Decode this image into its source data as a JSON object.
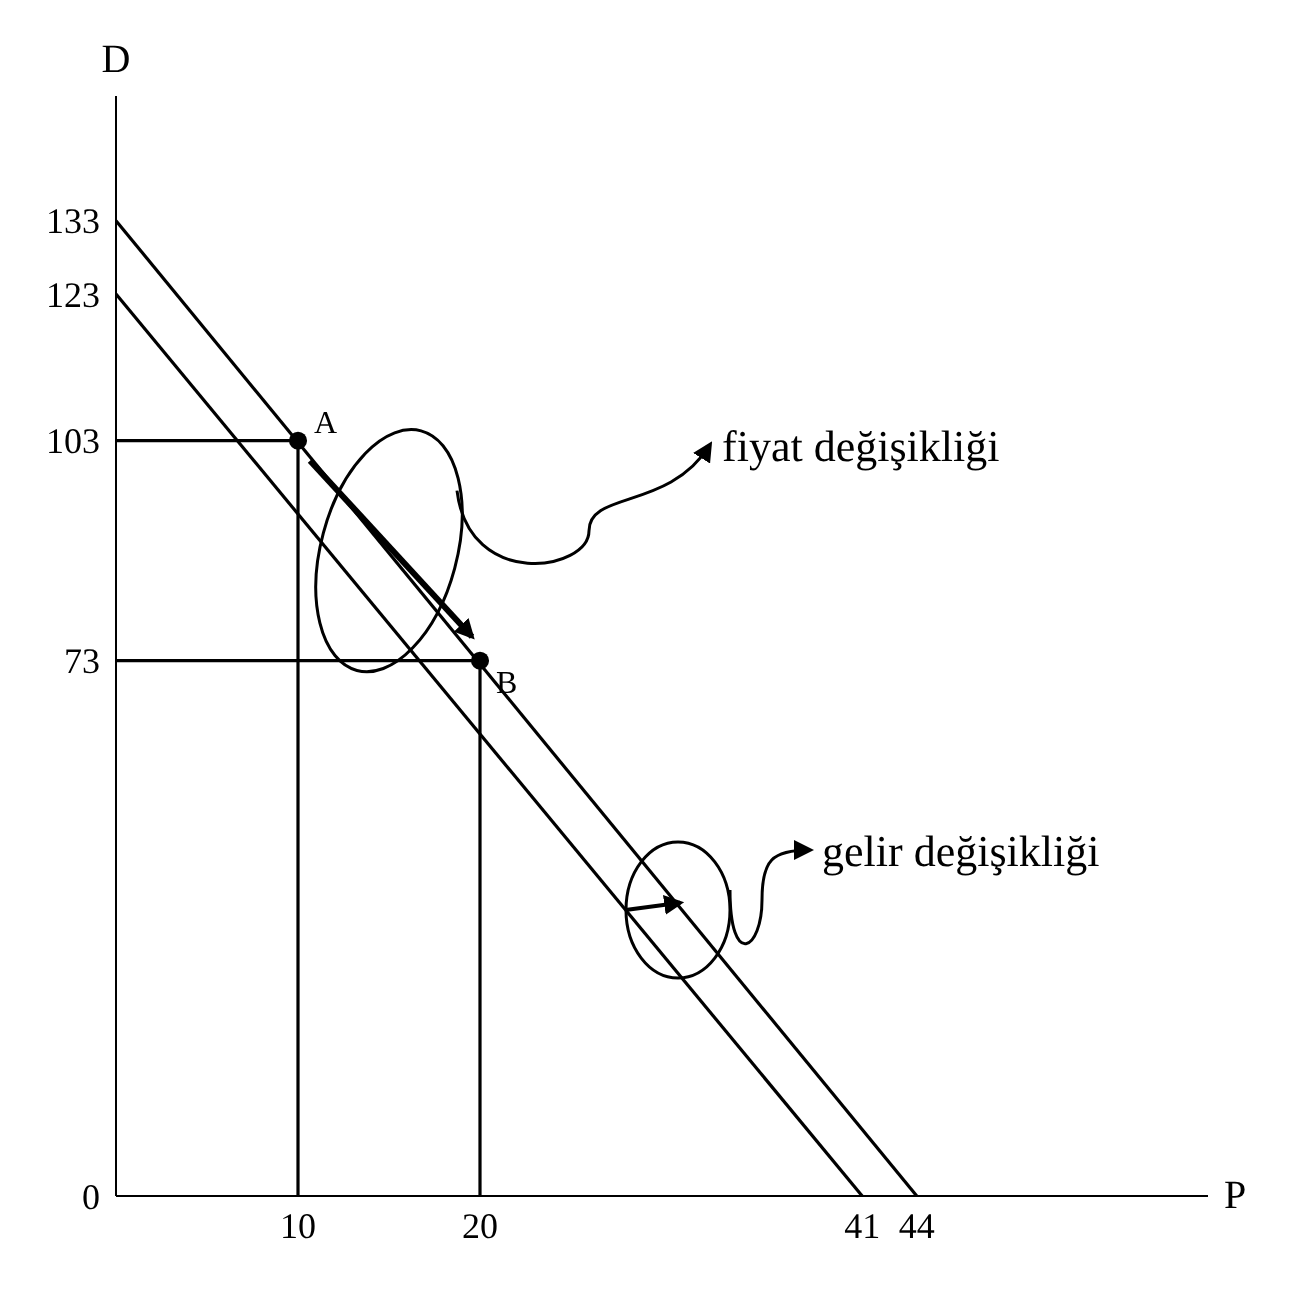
{
  "chart_data": {
    "type": "line",
    "xlabel": "P",
    "ylabel": "D",
    "xlim": [
      0,
      60
    ],
    "ylim": [
      0,
      150
    ],
    "xticks": [
      10,
      20,
      41,
      44
    ],
    "yticks": [
      0,
      73,
      103,
      123,
      133
    ],
    "marker": "none",
    "line_style": "solid",
    "series": [
      {
        "x": [
          0,
          44
        ],
        "values": [
          133,
          0
        ],
        "color": "#000000"
      },
      {
        "x": [
          0,
          41
        ],
        "values": [
          123,
          0
        ],
        "color": "#000000"
      },
      {
        "x": [
          0,
          10,
          10
        ],
        "values": [
          103,
          103,
          0
        ],
        "color": "#000000"
      },
      {
        "x": [
          0,
          20,
          20
        ],
        "values": [
          73,
          73,
          0
        ],
        "color": "#000000"
      },
      {
        "type": "scatter",
        "x": [
          10,
          20
        ],
        "values": [
          103,
          73
        ],
        "color": "#000000",
        "marker": "circle"
      }
    ],
    "annotations": [
      {
        "text": "A",
        "x": 10,
        "y": 103
      },
      {
        "text": "B",
        "x": 20,
        "y": 73
      },
      "fiyat değişikliği",
      "gelir değişikliği"
    ]
  }
}
